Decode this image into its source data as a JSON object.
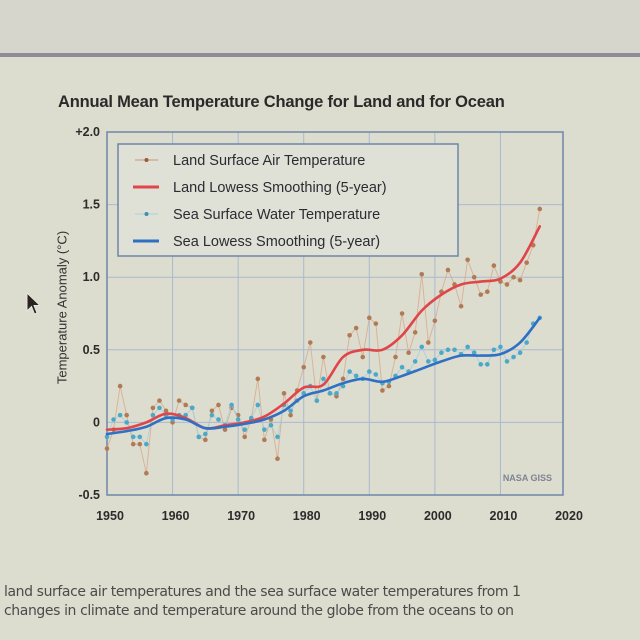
{
  "chart_data": {
    "type": "line",
    "title": "Annual Mean Temperature Change for Land and for Ocean",
    "xlabel": "",
    "ylabel": "Temperature Anomaly (°C)",
    "xlim": [
      1950,
      2020
    ],
    "ylim": [
      -0.5,
      2.0
    ],
    "x_ticks": [
      "1950",
      "1960",
      "1970",
      "1980",
      "1990",
      "2000",
      "2010",
      "2020"
    ],
    "y_ticks": [
      "+2.0",
      "1.5",
      "1.0",
      "0.5",
      "0",
      "-0.5"
    ],
    "y_tick_values": [
      2.0,
      1.5,
      1.0,
      0.5,
      0,
      -0.5
    ],
    "x_tick_values": [
      1950,
      1960,
      1970,
      1980,
      1990,
      2000,
      2010,
      2020
    ],
    "grid": true,
    "legend_position": "top-left",
    "credit": "NASA GISS",
    "series": [
      {
        "name": "Land Surface Air Temperature",
        "kind": "points",
        "color": "#b07a55",
        "x": [
          1950,
          1951,
          1952,
          1953,
          1954,
          1955,
          1956,
          1957,
          1958,
          1959,
          1960,
          1961,
          1962,
          1963,
          1964,
          1965,
          1966,
          1967,
          1968,
          1969,
          1970,
          1971,
          1972,
          1973,
          1974,
          1975,
          1976,
          1977,
          1978,
          1979,
          1980,
          1981,
          1982,
          1983,
          1984,
          1985,
          1986,
          1987,
          1988,
          1989,
          1990,
          1991,
          1992,
          1993,
          1994,
          1995,
          1996,
          1997,
          1998,
          1999,
          2000,
          2001,
          2002,
          2003,
          2004,
          2005,
          2006,
          2007,
          2008,
          2009,
          2010,
          2011,
          2012,
          2013,
          2014,
          2015,
          2016
        ],
        "y": [
          -0.18,
          -0.05,
          0.25,
          0.05,
          -0.15,
          -0.15,
          -0.35,
          0.1,
          0.15,
          0.08,
          0.0,
          0.15,
          0.12,
          0.1,
          -0.1,
          -0.12,
          0.08,
          0.12,
          -0.05,
          0.1,
          0.05,
          -0.1,
          0.02,
          0.3,
          -0.12,
          0.02,
          -0.25,
          0.2,
          0.05,
          0.22,
          0.38,
          0.55,
          0.15,
          0.45,
          0.2,
          0.18,
          0.3,
          0.6,
          0.65,
          0.45,
          0.72,
          0.68,
          0.22,
          0.25,
          0.45,
          0.75,
          0.48,
          0.62,
          1.02,
          0.55,
          0.7,
          0.9,
          1.05,
          0.95,
          0.8,
          1.12,
          1.0,
          0.88,
          0.9,
          1.08,
          0.97,
          0.95,
          1.0,
          0.98,
          1.1,
          1.22,
          1.47
        ]
      },
      {
        "name": "Land Lowess Smoothing (5-year)",
        "kind": "line",
        "color": "#e0454a",
        "x": [
          1950,
          1953,
          1956,
          1959,
          1962,
          1965,
          1968,
          1971,
          1974,
          1977,
          1980,
          1983,
          1986,
          1989,
          1992,
          1995,
          1998,
          2001,
          2004,
          2007,
          2010,
          2013,
          2016
        ],
        "y": [
          -0.05,
          -0.04,
          0.0,
          0.06,
          0.03,
          -0.04,
          -0.02,
          0.0,
          0.04,
          0.13,
          0.24,
          0.26,
          0.45,
          0.5,
          0.5,
          0.6,
          0.77,
          0.88,
          0.95,
          0.97,
          0.99,
          1.1,
          1.35
        ]
      },
      {
        "name": "Sea Surface Water Temperature",
        "kind": "points",
        "color": "#4aa9c9",
        "x": [
          1950,
          1951,
          1952,
          1953,
          1954,
          1955,
          1956,
          1957,
          1958,
          1959,
          1960,
          1961,
          1962,
          1963,
          1964,
          1965,
          1966,
          1967,
          1968,
          1969,
          1970,
          1971,
          1972,
          1973,
          1974,
          1975,
          1976,
          1977,
          1978,
          1979,
          1980,
          1981,
          1982,
          1983,
          1984,
          1985,
          1986,
          1987,
          1988,
          1989,
          1990,
          1991,
          1992,
          1993,
          1994,
          1995,
          1996,
          1997,
          1998,
          1999,
          2000,
          2001,
          2002,
          2003,
          2004,
          2005,
          2006,
          2007,
          2008,
          2009,
          2010,
          2011,
          2012,
          2013,
          2014,
          2015,
          2016
        ],
        "y": [
          -0.1,
          0.02,
          0.05,
          0.0,
          -0.1,
          -0.1,
          -0.15,
          0.05,
          0.1,
          0.05,
          0.02,
          0.05,
          0.05,
          0.1,
          -0.1,
          -0.08,
          0.05,
          0.02,
          -0.02,
          0.12,
          0.02,
          -0.05,
          0.03,
          0.12,
          -0.05,
          -0.02,
          -0.1,
          0.12,
          0.08,
          0.15,
          0.2,
          0.25,
          0.15,
          0.3,
          0.2,
          0.2,
          0.25,
          0.35,
          0.32,
          0.3,
          0.35,
          0.33,
          0.27,
          0.28,
          0.32,
          0.38,
          0.35,
          0.42,
          0.52,
          0.42,
          0.43,
          0.48,
          0.5,
          0.5,
          0.47,
          0.52,
          0.48,
          0.4,
          0.4,
          0.5,
          0.52,
          0.42,
          0.45,
          0.48,
          0.55,
          0.68,
          0.72
        ]
      },
      {
        "name": "Sea Lowess Smoothing (5-year)",
        "kind": "line",
        "color": "#2f6fc4",
        "x": [
          1950,
          1953,
          1956,
          1959,
          1962,
          1965,
          1968,
          1971,
          1974,
          1977,
          1980,
          1983,
          1986,
          1989,
          1992,
          1995,
          1998,
          2001,
          2004,
          2007,
          2010,
          2013,
          2016
        ],
        "y": [
          -0.08,
          -0.06,
          -0.03,
          0.03,
          0.02,
          -0.04,
          -0.03,
          -0.01,
          0.02,
          0.08,
          0.18,
          0.22,
          0.27,
          0.3,
          0.28,
          0.32,
          0.37,
          0.42,
          0.46,
          0.46,
          0.47,
          0.55,
          0.72
        ]
      }
    ]
  },
  "page": {
    "caption_lines": [
      "land surface air temperatures and the sea surface water temperatures from 1",
      "changes in climate and temperature around the globe from the oceans to on"
    ]
  }
}
